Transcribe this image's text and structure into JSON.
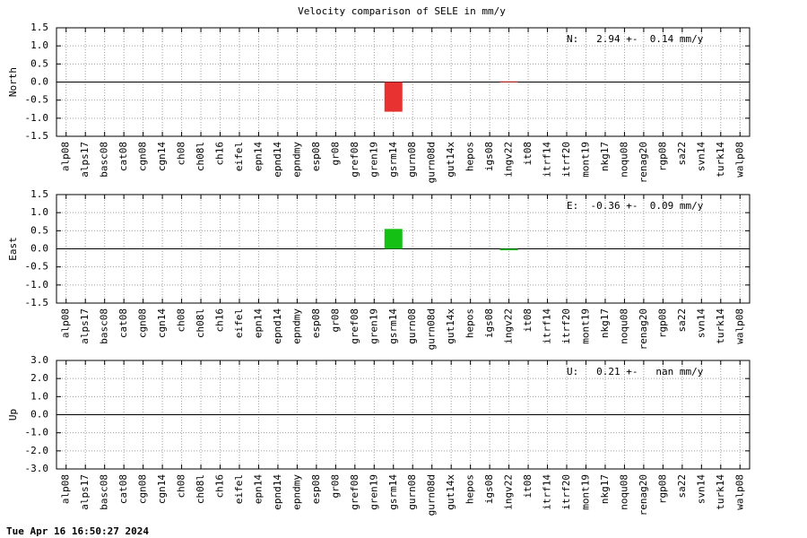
{
  "title": "Velocity comparison of SELE in mm/y",
  "footer": "Tue Apr 16 16:50:27 2024",
  "chart_data": [
    {
      "type": "bar",
      "ylabel": "North",
      "annotation": "N:   2.94 +-  0.14 mm/y",
      "color": "#e83232",
      "categories": [
        "alp08",
        "alps17",
        "basc08",
        "cat08",
        "cgn08",
        "cgn14",
        "ch08",
        "ch08l",
        "ch16",
        "eifel",
        "epn14",
        "epnd14",
        "epndmy",
        "esp08",
        "gr08",
        "gref08",
        "gren19",
        "gsrm14",
        "gurn08",
        "gurn08d",
        "gut14x",
        "hepos",
        "igs08",
        "ingv22",
        "it08",
        "itrf14",
        "itrf20",
        "mont19",
        "nkg17",
        "noqu08",
        "renag20",
        "rgp08",
        "sa22",
        "svn14",
        "turk14",
        "walp08"
      ],
      "values": [
        null,
        null,
        null,
        null,
        null,
        null,
        null,
        null,
        null,
        null,
        null,
        null,
        null,
        null,
        null,
        null,
        null,
        -0.82,
        null,
        null,
        null,
        null,
        null,
        0.02,
        null,
        null,
        null,
        null,
        null,
        null,
        null,
        null,
        null,
        null,
        null,
        null
      ],
      "ylim": [
        -1.5,
        1.5
      ],
      "yticks": [
        -1.5,
        {
          "value": -1,
          "label": "-1.0"
        },
        -0.5,
        {
          "value": 0,
          "label": "0.0"
        },
        0.5,
        {
          "value": 1,
          "label": "1.0"
        },
        1.5
      ],
      "grid": true
    },
    {
      "type": "bar",
      "ylabel": "East",
      "annotation": "E:  -0.36 +-  0.09 mm/y",
      "color": "#14c014",
      "categories": [
        "alp08",
        "alps17",
        "basc08",
        "cat08",
        "cgn08",
        "cgn14",
        "ch08",
        "ch08l",
        "ch16",
        "eifel",
        "epn14",
        "epnd14",
        "epndmy",
        "esp08",
        "gr08",
        "gref08",
        "gren19",
        "gsrm14",
        "gurn08",
        "gurn08d",
        "gut14x",
        "hepos",
        "igs08",
        "ingv22",
        "it08",
        "itrf14",
        "itrf20",
        "mont19",
        "nkg17",
        "noqu08",
        "renag20",
        "rgp08",
        "sa22",
        "svn14",
        "turk14",
        "walp08"
      ],
      "values": [
        null,
        null,
        null,
        null,
        null,
        null,
        null,
        null,
        null,
        null,
        null,
        null,
        null,
        null,
        null,
        null,
        null,
        0.55,
        null,
        null,
        null,
        null,
        null,
        -0.04,
        null,
        null,
        null,
        null,
        null,
        null,
        null,
        null,
        null,
        null,
        null,
        null
      ],
      "ylim": [
        -1.5,
        1.5
      ],
      "yticks": [
        -1.5,
        {
          "value": -1,
          "label": "-1.0"
        },
        -0.5,
        {
          "value": 0,
          "label": "0.0"
        },
        0.5,
        {
          "value": 1,
          "label": "1.0"
        },
        1.5
      ],
      "grid": true
    },
    {
      "type": "bar",
      "ylabel": "Up",
      "annotation": "U:   0.21 +-   nan mm/y",
      "categories": [
        "alp08",
        "alps17",
        "basc08",
        "cat08",
        "cgn08",
        "cgn14",
        "ch08",
        "ch08l",
        "ch16",
        "eifel",
        "epn14",
        "epnd14",
        "epndmy",
        "esp08",
        "gr08",
        "gref08",
        "gren19",
        "gsrm14",
        "gurn08",
        "gurn08d",
        "gut14x",
        "hepos",
        "igs08",
        "ingv22",
        "it08",
        "itrf14",
        "itrf20",
        "mont19",
        "nkg17",
        "noqu08",
        "renag20",
        "rgp08",
        "sa22",
        "svn14",
        "turk14",
        "walp08"
      ],
      "values": [
        null,
        null,
        null,
        null,
        null,
        null,
        null,
        null,
        null,
        null,
        null,
        null,
        null,
        null,
        null,
        null,
        null,
        null,
        null,
        null,
        null,
        null,
        null,
        null,
        null,
        null,
        null,
        null,
        null,
        null,
        null,
        null,
        null,
        null,
        null,
        null
      ],
      "ylim": [
        -3,
        3
      ],
      "yticks": [
        {
          "value": -3,
          "label": "-3.0"
        },
        {
          "value": -2,
          "label": "-2.0"
        },
        {
          "value": -1,
          "label": "-1.0"
        },
        {
          "value": 0,
          "label": "0.0"
        },
        {
          "value": 1,
          "label": "1.0"
        },
        {
          "value": 2,
          "label": "2.0"
        },
        {
          "value": 3,
          "label": "3.0"
        }
      ],
      "grid": true
    }
  ]
}
